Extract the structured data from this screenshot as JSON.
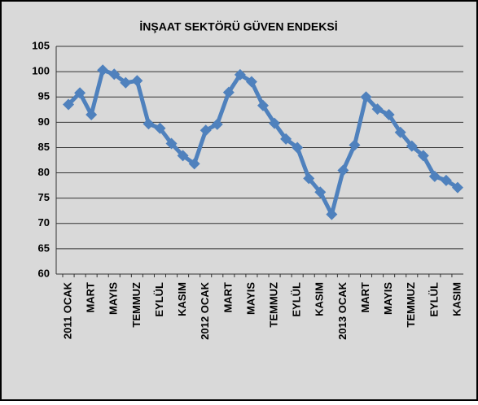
{
  "chart_data": {
    "type": "line",
    "title": "İNŞAAT SEKTÖRÜ GÜVEN ENDEKSİ",
    "categories": [
      "2011 OCAK",
      null,
      "MART",
      null,
      "MAYIS",
      null,
      "TEMMUZ",
      null,
      "EYLÜL",
      null,
      "KASIM",
      null,
      "2012 OCAK",
      null,
      "MART",
      null,
      "MAYIS",
      null,
      "TEMMUZ",
      null,
      "EYLÜL",
      null,
      "KASIM",
      null,
      "2013 OCAK",
      null,
      "MART",
      null,
      "MAYIS",
      null,
      "TEMMUZ",
      null,
      "EYLÜL",
      null,
      "KASIM"
    ],
    "series": [
      {
        "name": "İNŞAAT SEKTÖRÜ GÜVEN ENDEKSİ",
        "color": "#4f81bd",
        "values": [
          93.5,
          95.8,
          91.5,
          100.3,
          99.5,
          97.8,
          98.2,
          89.7,
          88.8,
          85.8,
          83.4,
          81.8,
          88.4,
          89.6,
          95.9,
          99.4,
          98.0,
          93.3,
          89.8,
          86.7,
          85.0,
          78.9,
          76.2,
          71.8,
          80.5,
          85.5,
          95.0,
          92.6,
          91.5,
          88.0,
          85.3,
          83.4,
          79.3,
          78.5,
          77.1
        ]
      }
    ],
    "ylim": [
      60,
      105
    ],
    "yticks": [
      60,
      65,
      70,
      75,
      80,
      85,
      90,
      95,
      100,
      105
    ],
    "grid": true
  }
}
